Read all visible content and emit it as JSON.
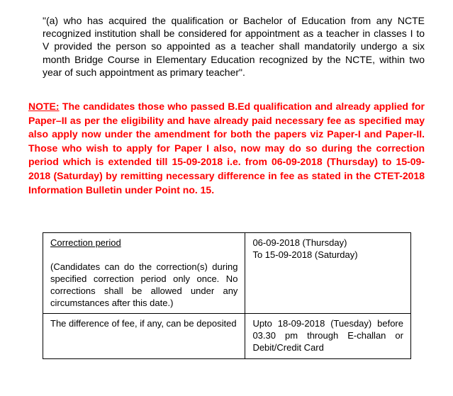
{
  "clause_text": "\"(a) who has acquired the qualification or Bachelor of Education from any NCTE recognized institution shall be considered for appointment as a teacher in classes I to V provided the person so appointed as a teacher shall mandatorily undergo a six month Bridge Course in Elementary Education recognized by the NCTE, within two year of such appointment as primary teacher\".",
  "note_label": "NOTE:",
  "note_text": " The candidates those who passed B.Ed qualification and already applied for Paper–II as per the eligibility and have already paid necessary fee as specified may also apply now under the amendment for both the papers viz Paper-I and Paper-II. Those who wish to apply for Paper I also, now may do so during the correction period which is extended till 15-09-2018 i.e. from 06-09-2018 (Thursday) to 15-09-2018 (Saturday) by remitting necessary difference in fee as stated in the CTET-2018 Information Bulletin under Point no. 15.",
  "table": {
    "row1": {
      "left_heading": "Correction period",
      "left_body": "(Candidates can do the correction(s) during specified correction period only once. No corrections shall be allowed under any circumstances after this date.)",
      "right": "06-09-2018 (Thursday)\nTo 15-09-2018 (Saturday)"
    },
    "row2": {
      "left": "The difference of fee, if any, can be deposited",
      "right": "Upto 18-09-2018 (Tuesday) before 03.30 pm through    E-challan or Debit/Credit Card"
    }
  },
  "colors": {
    "note_color": "#ff0000",
    "text_color": "#000000",
    "background": "#ffffff",
    "border_color": "#000000"
  },
  "fonts": {
    "body_size": 14,
    "table_size": 13,
    "family": "Arial"
  }
}
